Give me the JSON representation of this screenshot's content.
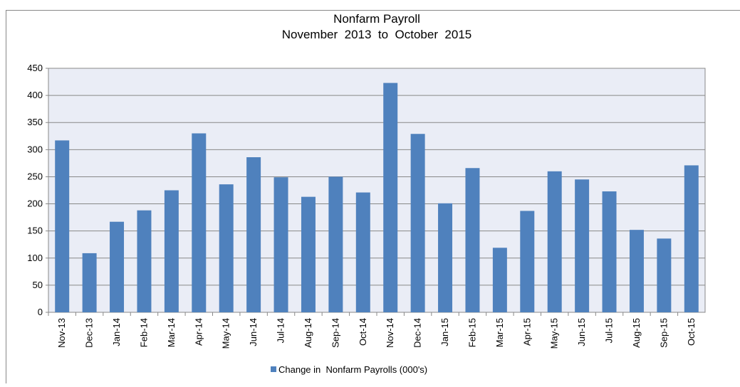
{
  "chart_data": {
    "type": "bar",
    "title": "Nonfarm Payroll",
    "subtitle": "November  2013  to  October  2015",
    "categories": [
      "Nov-13",
      "Dec-13",
      "Jan-14",
      "Feb-14",
      "Mar-14",
      "Apr-14",
      "May-14",
      "Jun-14",
      "Jul-14",
      "Aug-14",
      "Sep-14",
      "Oct-14",
      "Nov-14",
      "Dec-14",
      "Jan-15",
      "Feb-15",
      "Mar-15",
      "Apr-15",
      "May-15",
      "Jun-15",
      "Jul-15",
      "Aug-15",
      "Sep-15",
      "Oct-15"
    ],
    "series": [
      {
        "name": "Change in  Nonfarm Payrolls (000's)",
        "color": "#4f81bd",
        "values": [
          317,
          109,
          167,
          188,
          225,
          330,
          236,
          286,
          249,
          213,
          250,
          221,
          423,
          329,
          201,
          266,
          119,
          187,
          260,
          245,
          223,
          152,
          136,
          271
        ]
      }
    ],
    "ylim": [
      0,
      450
    ],
    "yticks": [
      0,
      50,
      100,
      150,
      200,
      250,
      300,
      350,
      400,
      450
    ],
    "grid": true,
    "legend": "bottom"
  }
}
